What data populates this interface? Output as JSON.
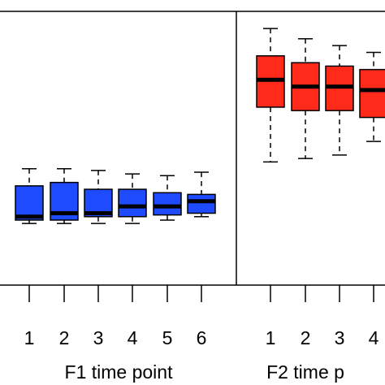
{
  "chart_data": {
    "type": "boxplot",
    "panels": [
      {
        "xlabel": "F1 time point",
        "categories": [
          "1",
          "2",
          "3",
          "4",
          "5",
          "6"
        ],
        "color": "#1f4bff",
        "boxes": [
          {
            "min": 0.38,
            "q1": 0.39,
            "median": 0.4,
            "q3": 0.49,
            "max": 0.54
          },
          {
            "min": 0.38,
            "q1": 0.39,
            "median": 0.41,
            "q3": 0.5,
            "max": 0.54
          },
          {
            "min": 0.38,
            "q1": 0.4,
            "median": 0.41,
            "q3": 0.48,
            "max": 0.535
          },
          {
            "min": 0.38,
            "q1": 0.4,
            "median": 0.43,
            "q3": 0.48,
            "max": 0.525
          },
          {
            "min": 0.39,
            "q1": 0.405,
            "median": 0.43,
            "q3": 0.47,
            "max": 0.52
          },
          {
            "min": 0.4,
            "q1": 0.41,
            "median": 0.445,
            "q3": 0.465,
            "max": 0.53
          }
        ]
      },
      {
        "xlabel": "F2 time p",
        "categories": [
          "1",
          "2",
          "3",
          "4"
        ],
        "color": "#ff2a1a",
        "boxes": [
          {
            "min": 0.56,
            "q1": 0.72,
            "median": 0.8,
            "q3": 0.87,
            "max": 0.95
          },
          {
            "min": 0.57,
            "q1": 0.71,
            "median": 0.78,
            "q3": 0.85,
            "max": 0.92
          },
          {
            "min": 0.58,
            "q1": 0.71,
            "median": 0.78,
            "q3": 0.84,
            "max": 0.9
          },
          {
            "min": 0.62,
            "q1": 0.69,
            "median": 0.77,
            "q3": 0.83,
            "max": 0.88
          }
        ]
      }
    ],
    "ylim": [
      0.2,
      1.0
    ]
  }
}
